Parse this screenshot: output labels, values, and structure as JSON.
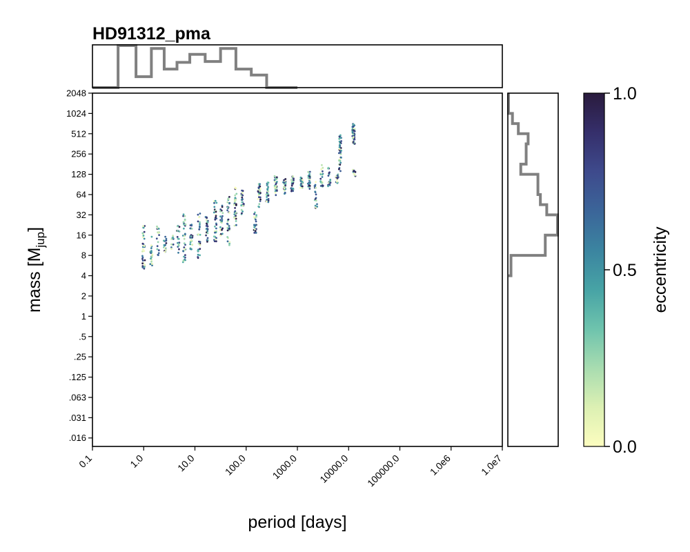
{
  "chart_data": {
    "type": "scatter",
    "title": "HD91312_pma",
    "xlabel": "period [days]",
    "ylabel": "mass [M",
    "ylabel_sub": "jup",
    "ylabel_close": "]",
    "colorbar_label": "eccentricity",
    "x_scale": "log",
    "y_scale": "log",
    "xlim": [
      0.1,
      10000000
    ],
    "ylim": [
      0.0117,
      2048
    ],
    "x_ticks": [
      {
        "value": 0.1,
        "label": "0.1"
      },
      {
        "value": 1,
        "label": "1.0"
      },
      {
        "value": 10,
        "label": "10.0"
      },
      {
        "value": 100,
        "label": "100.0"
      },
      {
        "value": 1000,
        "label": "1000.0"
      },
      {
        "value": 10000,
        "label": "10000.0"
      },
      {
        "value": 100000,
        "label": "100000.0"
      },
      {
        "value": 1000000,
        "label": "1.0e6"
      },
      {
        "value": 10000000,
        "label": "1.0e7"
      }
    ],
    "y_ticks": [
      {
        "value": 2048,
        "label": "2048"
      },
      {
        "value": 1024,
        "label": "1024"
      },
      {
        "value": 512,
        "label": "512"
      },
      {
        "value": 256,
        "label": "256"
      },
      {
        "value": 128,
        "label": "128"
      },
      {
        "value": 64,
        "label": "64"
      },
      {
        "value": 32,
        "label": "32"
      },
      {
        "value": 16,
        "label": "16"
      },
      {
        "value": 8,
        "label": "8"
      },
      {
        "value": 4,
        "label": "4"
      },
      {
        "value": 2,
        "label": "2"
      },
      {
        "value": 1,
        "label": "1"
      },
      {
        "value": 0.5,
        "label": ".5"
      },
      {
        "value": 0.25,
        "label": ".25"
      },
      {
        "value": 0.125,
        "label": ".125"
      },
      {
        "value": 0.0625,
        "label": ".063"
      },
      {
        "value": 0.03125,
        "label": ".031"
      },
      {
        "value": 0.015625,
        "label": ".016"
      }
    ],
    "colorbar": {
      "range": [
        0,
        1
      ],
      "ticks": [
        {
          "value": 0,
          "label": "0.0"
        },
        {
          "value": 0.5,
          "label": "0.5"
        },
        {
          "value": 1,
          "label": "1.0"
        }
      ],
      "colormap": [
        "#fcfdbf",
        "#dcf0b3",
        "#a8dcb0",
        "#6ec3ad",
        "#47a3a5",
        "#3b84a0",
        "#3b6599",
        "#3e4a8c",
        "#352f6b",
        "#2a1b3d"
      ]
    },
    "line_color": "#808080",
    "clusters": [
      {
        "period": 1.0,
        "mass_min": 5,
        "mass_max": 22,
        "count": 34
      },
      {
        "period": 1.4,
        "mass_min": 5.5,
        "mass_max": 16,
        "count": 22
      },
      {
        "period": 1.9,
        "mass_min": 8,
        "mass_max": 22,
        "count": 16
      },
      {
        "period": 2.6,
        "mass_min": 9,
        "mass_max": 17,
        "count": 18
      },
      {
        "period": 3.6,
        "mass_min": 10,
        "mass_max": 16,
        "count": 12
      },
      {
        "period": 4.7,
        "mass_min": 8,
        "mass_max": 22,
        "count": 18
      },
      {
        "period": 6.2,
        "mass_min": 6,
        "mass_max": 34,
        "count": 34
      },
      {
        "period": 8.5,
        "mass_min": 9,
        "mass_max": 24,
        "count": 22
      },
      {
        "period": 12,
        "mass_min": 7,
        "mass_max": 35,
        "count": 28
      },
      {
        "period": 17,
        "mass_min": 12,
        "mass_max": 30,
        "count": 26
      },
      {
        "period": 25,
        "mass_min": 12,
        "mass_max": 55,
        "count": 32
      },
      {
        "period": 33,
        "mass_min": 15,
        "mass_max": 45,
        "count": 26
      },
      {
        "period": 45,
        "mass_min": 11,
        "mass_max": 60,
        "count": 34
      },
      {
        "period": 62,
        "mass_min": 22,
        "mass_max": 85,
        "count": 36
      },
      {
        "period": 85,
        "mass_min": 30,
        "mass_max": 75,
        "count": 26
      },
      {
        "period": 150,
        "mass_min": 17,
        "mass_max": 35,
        "count": 28
      },
      {
        "period": 180,
        "mass_min": 40,
        "mass_max": 95,
        "count": 26
      },
      {
        "period": 260,
        "mass_min": 48,
        "mass_max": 100,
        "count": 28
      },
      {
        "period": 380,
        "mass_min": 60,
        "mass_max": 120,
        "count": 28
      },
      {
        "period": 560,
        "mass_min": 65,
        "mass_max": 110,
        "count": 26
      },
      {
        "period": 800,
        "mass_min": 70,
        "mass_max": 125,
        "count": 26
      },
      {
        "period": 1200,
        "mass_min": 80,
        "mass_max": 115,
        "count": 22
      },
      {
        "period": 1700,
        "mass_min": 75,
        "mass_max": 140,
        "count": 24
      },
      {
        "period": 2300,
        "mass_min": 40,
        "mass_max": 110,
        "count": 18
      },
      {
        "period": 3000,
        "mass_min": 80,
        "mass_max": 180,
        "count": 24
      },
      {
        "period": 4200,
        "mass_min": 80,
        "mass_max": 160,
        "count": 20
      },
      {
        "period": 6000,
        "mass_min": 95,
        "mass_max": 130,
        "count": 18
      },
      {
        "period": 6800,
        "mass_min": 140,
        "mass_max": 500,
        "count": 40
      },
      {
        "period": 12500,
        "mass_min": 350,
        "mass_max": 720,
        "count": 60
      },
      {
        "period": 12800,
        "mass_min": 120,
        "mass_max": 150,
        "count": 10
      }
    ],
    "top_histogram": {
      "log_period_edges": [
        -1.0,
        -0.5,
        -0.15,
        0.15,
        0.4,
        0.65,
        0.9,
        1.2,
        1.5,
        1.8,
        2.1,
        2.4,
        2.7,
        3.0
      ],
      "heights": [
        0.0,
        1.0,
        0.26,
        0.93,
        0.44,
        0.6,
        0.79,
        0.62,
        0.93,
        0.44,
        0.3,
        0.0,
        0.0
      ]
    },
    "right_histogram": {
      "log2_mass_edges": [
        2.0,
        3.0,
        4.0,
        5.0,
        5.5,
        6.0,
        7.0,
        7.5,
        8.0,
        8.5,
        9.0,
        9.5,
        10.0,
        11.0
      ],
      "heights": [
        0.05,
        0.75,
        1.0,
        0.78,
        0.65,
        0.6,
        0.25,
        0.36,
        0.36,
        0.4,
        0.2,
        0.08,
        0.0
      ]
    }
  }
}
